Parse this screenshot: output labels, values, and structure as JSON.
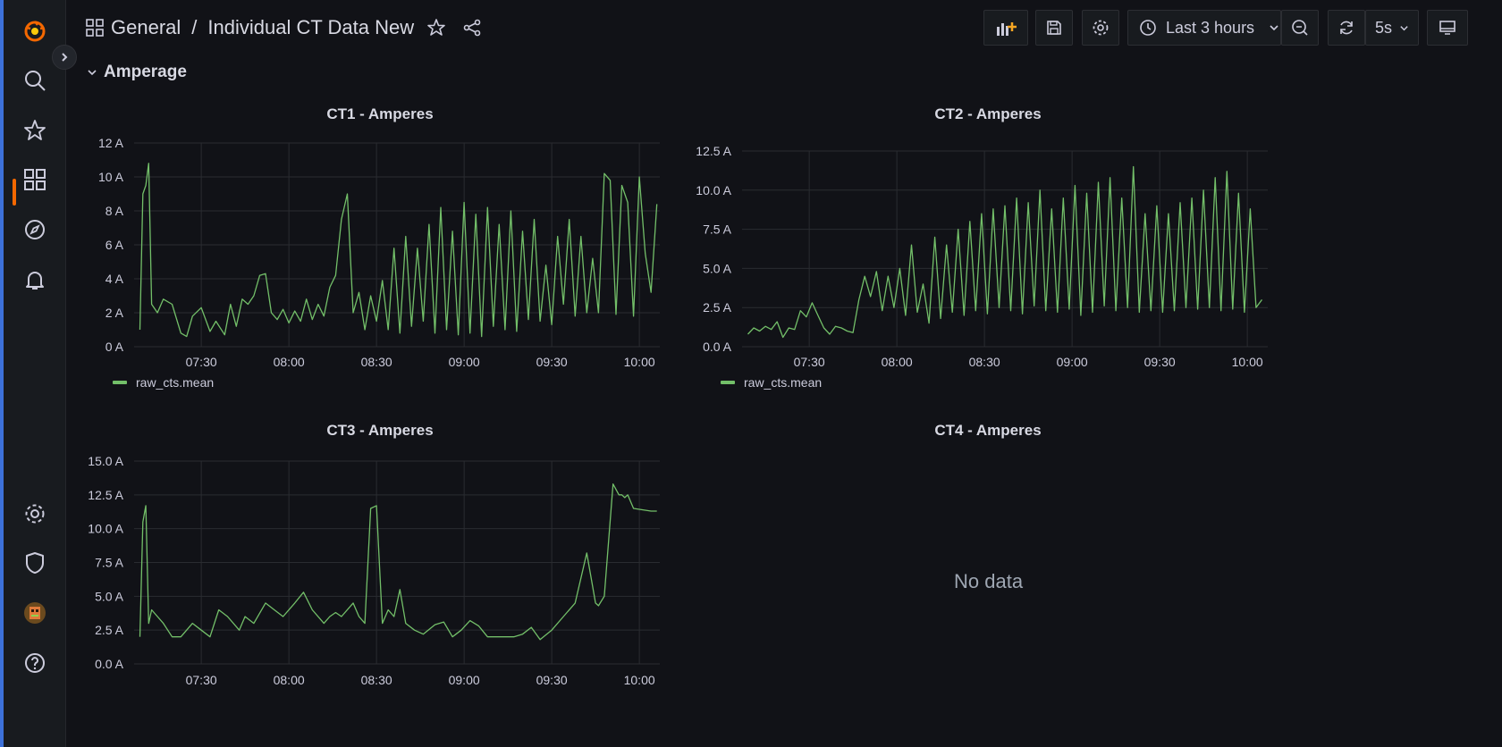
{
  "breadcrumb": {
    "folder": "General",
    "separator": "/",
    "dashboard": "Individual CT Data New"
  },
  "toolbar": {
    "time_range": "Last 3 hours",
    "refresh_interval": "5s"
  },
  "row": {
    "title": "Amperage"
  },
  "colors": {
    "series": "#73bf69",
    "accent": "#f46800",
    "background": "#111217"
  },
  "icons": [
    "grafana-logo-icon",
    "search-icon",
    "star-icon",
    "dashboards-icon",
    "explore-icon",
    "alerting-icon",
    "settings-icon",
    "shield-icon",
    "avatar",
    "help-icon"
  ],
  "panels": [
    {
      "title": "CT1 - Amperes",
      "legend": "raw_cts.mean",
      "no_data": ""
    },
    {
      "title": "CT2 - Amperes",
      "legend": "raw_cts.mean",
      "no_data": ""
    },
    {
      "title": "CT3 - Amperes",
      "legend": "",
      "no_data": ""
    },
    {
      "title": "CT4 - Amperes",
      "legend": "",
      "no_data": "No data"
    }
  ],
  "chart_data": [
    {
      "type": "line",
      "title": "CT1 - Amperes",
      "x_ticks": [
        "07:30",
        "08:00",
        "08:30",
        "09:00",
        "09:30",
        "10:00"
      ],
      "y_ticks": [
        "0 A",
        "2 A",
        "4 A",
        "6 A",
        "8 A",
        "10 A",
        "12 A"
      ],
      "ylim": [
        0,
        12
      ],
      "xlim_minutes_after_0700": [
        7,
        187
      ],
      "series": [
        {
          "name": "raw_cts.mean",
          "x_minutes": [
            9,
            10,
            11,
            12,
            13,
            15,
            17,
            20,
            23,
            25,
            27,
            30,
            33,
            35,
            38,
            40,
            42,
            44,
            46,
            48,
            50,
            52,
            54,
            56,
            58,
            60,
            62,
            64,
            66,
            68,
            70,
            72,
            74,
            76,
            78,
            80,
            82,
            84,
            86,
            88,
            90,
            92,
            94,
            96,
            98,
            100,
            102,
            104,
            106,
            108,
            110,
            112,
            114,
            116,
            118,
            120,
            122,
            124,
            126,
            128,
            130,
            132,
            134,
            136,
            138,
            140,
            142,
            144,
            146,
            148,
            150,
            152,
            154,
            156,
            158,
            160,
            162,
            164,
            166,
            168,
            170,
            172,
            174,
            176,
            178,
            180,
            182,
            184,
            186
          ],
          "values": [
            1,
            9,
            9.5,
            10.8,
            2.5,
            2,
            2.8,
            2.5,
            0.8,
            0.6,
            1.8,
            2.3,
            0.9,
            1.5,
            0.7,
            2.5,
            1.2,
            2.8,
            2.5,
            3,
            4.2,
            4.3,
            2,
            1.6,
            2.2,
            1.4,
            2.1,
            1.5,
            2.8,
            1.6,
            2.5,
            1.8,
            3.5,
            4.2,
            7.5,
            9,
            2,
            3.2,
            1,
            3,
            1.5,
            3.9,
            1,
            5.8,
            0.8,
            6.5,
            1.2,
            5.8,
            1.5,
            7.2,
            0.8,
            8.2,
            1,
            6.8,
            0.7,
            8.5,
            0.8,
            7.8,
            0.6,
            8.2,
            1.2,
            7.2,
            1,
            8,
            0.9,
            6.8,
            1.6,
            7.5,
            1.5,
            4.8,
            1.3,
            6.5,
            2.5,
            7.5,
            1.8,
            6.5,
            2,
            5.2,
            2,
            10.2,
            9.8,
            1.9,
            9.5,
            8.5,
            1.8,
            10,
            5.5,
            3.2,
            8.4
          ]
        }
      ]
    },
    {
      "type": "line",
      "title": "CT2 - Amperes",
      "x_ticks": [
        "07:30",
        "08:00",
        "08:30",
        "09:00",
        "09:30",
        "10:00"
      ],
      "y_ticks": [
        "0.0 A",
        "2.5 A",
        "5.0 A",
        "7.5 A",
        "10.0 A",
        "12.5 A"
      ],
      "ylim": [
        0,
        12.5
      ],
      "xlim_minutes_after_0700": [
        7,
        187
      ],
      "series": [
        {
          "name": "raw_cts.mean",
          "x_minutes": [
            9,
            11,
            13,
            15,
            17,
            19,
            21,
            23,
            25,
            27,
            29,
            31,
            33,
            35,
            37,
            39,
            41,
            43,
            45,
            47,
            49,
            51,
            53,
            55,
            57,
            59,
            61,
            63,
            65,
            67,
            69,
            71,
            73,
            75,
            77,
            79,
            81,
            83,
            85,
            87,
            89,
            91,
            93,
            95,
            97,
            99,
            101,
            103,
            105,
            107,
            109,
            111,
            113,
            115,
            117,
            119,
            121,
            123,
            125,
            127,
            129,
            131,
            133,
            135,
            137,
            139,
            141,
            143,
            145,
            147,
            149,
            151,
            153,
            155,
            157,
            159,
            161,
            163,
            165,
            167,
            169,
            171,
            173,
            175,
            177,
            179,
            181,
            183,
            185
          ],
          "values": [
            0.8,
            1.2,
            1,
            1.3,
            1.1,
            1.6,
            0.6,
            1.2,
            1.1,
            2.3,
            1.9,
            2.8,
            2,
            1.2,
            0.8,
            1.3,
            1.2,
            1,
            0.9,
            3,
            4.5,
            3.2,
            4.8,
            2.3,
            4.5,
            2.5,
            5,
            2,
            6.5,
            2.2,
            4,
            1.5,
            7,
            1.8,
            6.5,
            2.2,
            7.5,
            2,
            8,
            2.3,
            8.5,
            2.1,
            8.8,
            2.5,
            9,
            2.3,
            9.5,
            2.1,
            9.2,
            2.6,
            10,
            2.3,
            8.8,
            2.2,
            9.5,
            2.4,
            10.3,
            2,
            9.8,
            2.2,
            10.5,
            2.6,
            10.8,
            2.3,
            9.5,
            2.5,
            11.5,
            2.2,
            8.5,
            2.3,
            9,
            2.2,
            8.5,
            2.3,
            9.2,
            2.5,
            9.5,
            2.4,
            10,
            2.5,
            10.8,
            2.3,
            11.2,
            2.4,
            9.8,
            2.2,
            8.8,
            2.5,
            3
          ]
        }
      ]
    },
    {
      "type": "line",
      "title": "CT3 - Amperes",
      "x_ticks": [
        "07:30",
        "08:00",
        "08:30",
        "09:00",
        "09:30",
        "10:00"
      ],
      "y_ticks": [
        "0.0 A",
        "2.5 A",
        "5.0 A",
        "7.5 A",
        "10.0 A",
        "12.5 A",
        "15.0 A"
      ],
      "ylim": [
        0,
        15
      ],
      "xlim_minutes_after_0700": [
        7,
        187
      ],
      "series": [
        {
          "name": "",
          "x_minutes": [
            9,
            10,
            11,
            12,
            13,
            15,
            17,
            20,
            23,
            27,
            30,
            33,
            36,
            39,
            43,
            45,
            48,
            52,
            55,
            58,
            62,
            65,
            68,
            72,
            74,
            76,
            78,
            82,
            84,
            86,
            88,
            90,
            92,
            94,
            96,
            98,
            100,
            103,
            106,
            110,
            113,
            116,
            119,
            122,
            125,
            128,
            131,
            134,
            137,
            140,
            143,
            146,
            150,
            154,
            158,
            162,
            165,
            166,
            168,
            171,
            173,
            174,
            175,
            176,
            178,
            181,
            184,
            186
          ],
          "values": [
            2,
            10.5,
            11.7,
            3,
            4,
            3.5,
            3,
            2,
            2,
            3,
            2.5,
            2,
            4,
            3.5,
            2.5,
            3.5,
            3,
            4.5,
            4,
            3.5,
            4.5,
            5.3,
            4,
            3,
            3.5,
            3.8,
            3.5,
            4.5,
            3.5,
            3,
            11.5,
            11.7,
            3,
            4,
            3.5,
            5.5,
            3,
            2.5,
            2.2,
            2.9,
            3.1,
            2,
            2.5,
            3.2,
            2.8,
            2,
            2,
            2,
            2,
            2.2,
            2.7,
            1.8,
            2.5,
            3.5,
            4.5,
            8.2,
            4.5,
            4.3,
            5,
            13.3,
            12.5,
            12.5,
            12.3,
            12.5,
            11.5,
            11.4,
            11.3,
            11.3
          ]
        }
      ]
    },
    {
      "type": "line",
      "title": "CT4 - Amperes",
      "series": []
    }
  ]
}
